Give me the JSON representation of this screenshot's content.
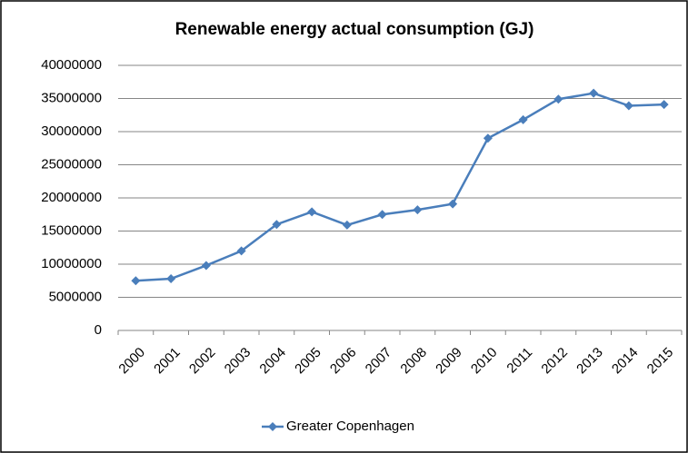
{
  "chart_data": {
    "type": "line",
    "title": "Renewable energy actual consumption (GJ)",
    "categories": [
      "2000",
      "2001",
      "2002",
      "2003",
      "2004",
      "2005",
      "2006",
      "2007",
      "2008",
      "2009",
      "2010",
      "2011",
      "2012",
      "2013",
      "2014",
      "2015"
    ],
    "series": [
      {
        "name": "Greater Copenhagen",
        "color": "#4a7ebb",
        "values": [
          7500000,
          7800000,
          9800000,
          12000000,
          16000000,
          17900000,
          15900000,
          17500000,
          18200000,
          19100000,
          29000000,
          31800000,
          34900000,
          35800000,
          33900000,
          34100000
        ]
      }
    ],
    "ylim": [
      0,
      40000000
    ],
    "yticks": [
      0,
      5000000,
      10000000,
      15000000,
      20000000,
      25000000,
      30000000,
      35000000,
      40000000
    ],
    "grid": true,
    "legend": "bottom"
  }
}
